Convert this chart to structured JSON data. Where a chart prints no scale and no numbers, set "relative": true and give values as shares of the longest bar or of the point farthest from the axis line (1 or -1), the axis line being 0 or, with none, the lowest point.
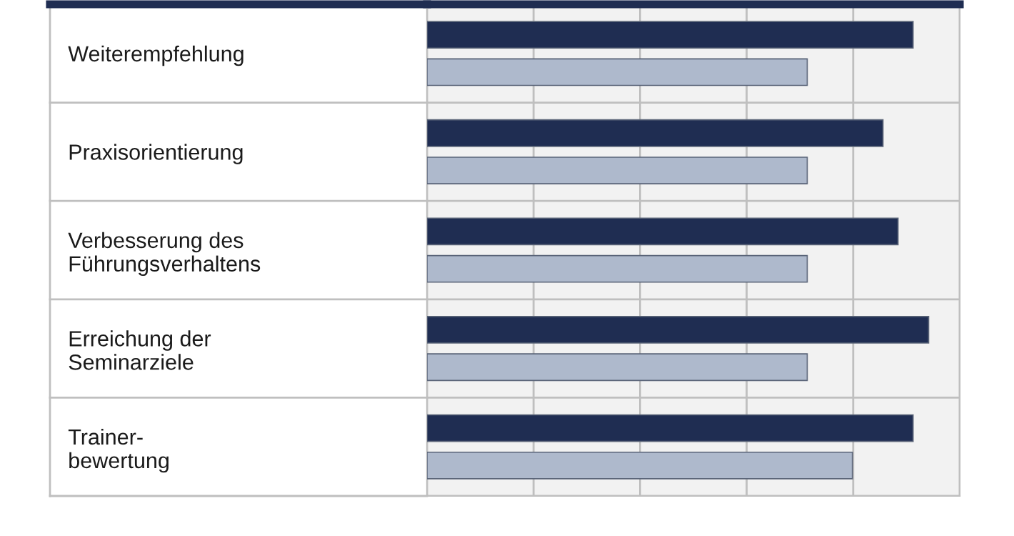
{
  "chart_data": {
    "type": "bar",
    "orientation": "horizontal",
    "relative": true,
    "grid": "x",
    "tick_labels": "y",
    "categories": [
      "Weiterempfehlung",
      "Praxisorientierung",
      "Verbesserung des\nFührungsverhaltens",
      "Erreichung der\nSeminarziele",
      "Trainer-\nbewertung"
    ],
    "series": [
      {
        "color": "#1f2d52",
        "values": [
          0.969,
          0.909,
          0.939,
          1,
          0.969
        ]
      },
      {
        "color": "#aeb9cc",
        "values": [
          0.758,
          0.758,
          0.758,
          0.758,
          0.848
        ]
      }
    ]
  }
}
